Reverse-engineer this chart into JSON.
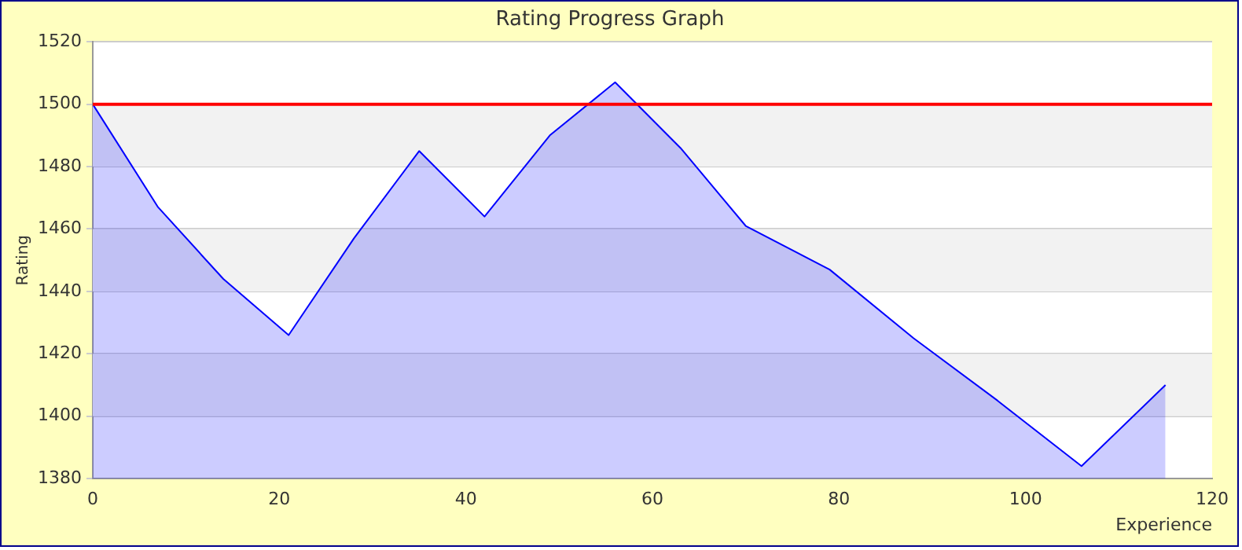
{
  "chart_data": {
    "type": "area",
    "title": "Rating Progress Graph",
    "xlabel": "Experience",
    "ylabel": "Rating",
    "x": [
      0,
      7,
      14,
      21,
      28,
      35,
      42,
      49,
      56,
      63,
      70,
      79,
      88,
      97,
      106,
      115
    ],
    "series": [
      {
        "color": "#0000ff",
        "values": [
          1500,
          1467,
          1444,
          1426,
          1457,
          1485,
          1464,
          1490,
          1507,
          1486,
          1461,
          1447,
          1425,
          1405,
          1384,
          1410
        ]
      }
    ],
    "xlim": [
      0,
      120
    ],
    "xticks": [
      0,
      20,
      40,
      60,
      80,
      100,
      120
    ],
    "ylim": [
      1380,
      1520
    ],
    "yticks": [
      1380,
      1400,
      1420,
      1440,
      1460,
      1480,
      1500,
      1520
    ],
    "grid": "y",
    "legend": false,
    "bands": [
      {
        "axis": "y",
        "from": 1400,
        "to": 1420,
        "color": "#f2f2f2"
      },
      {
        "axis": "y",
        "from": 1440,
        "to": 1460,
        "color": "#f2f2f2"
      },
      {
        "axis": "y",
        "from": 1480,
        "to": 1500,
        "color": "#f2f2f2"
      }
    ],
    "ref_lines": [
      {
        "axis": "y",
        "value": 1500,
        "color": "#ff0000"
      }
    ]
  }
}
